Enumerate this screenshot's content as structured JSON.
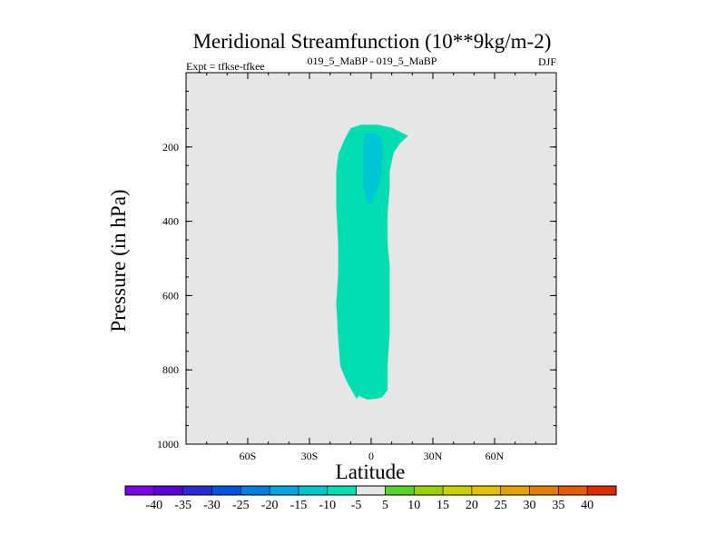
{
  "chart_data": {
    "type": "heatmap",
    "title": "Meridional Streamfunction (10**9kg/m-2)",
    "subtitle_left": "Expt = tfkse-tfkee",
    "subtitle_center": "019_5_MaBP - 019_5_MaBP",
    "subtitle_right": "DJF",
    "xlabel": "Latitude",
    "ylabel": "Pressure (in hPa)",
    "xlim": [
      -90,
      90
    ],
    "ylim": [
      1000,
      0
    ],
    "x_ticks": [
      {
        "value": -60,
        "label": "60S"
      },
      {
        "value": -30,
        "label": "30S"
      },
      {
        "value": 0,
        "label": "0"
      },
      {
        "value": 30,
        "label": "30N"
      },
      {
        "value": 60,
        "label": "60N"
      }
    ],
    "y_ticks": [
      {
        "value": 200,
        "label": "200"
      },
      {
        "value": 400,
        "label": "400"
      },
      {
        "value": 600,
        "label": "600"
      },
      {
        "value": 800,
        "label": "800"
      },
      {
        "value": 1000,
        "label": "1000"
      }
    ],
    "background_color": "#e6e6e6",
    "regions": [
      {
        "name": "cell-minus10-to-minus5",
        "range": [
          -10,
          -5
        ],
        "color": "#00deb0",
        "outline": [
          [
            -10,
            150
          ],
          [
            -5,
            140
          ],
          [
            3,
            140
          ],
          [
            10,
            148
          ],
          [
            18,
            170
          ],
          [
            14,
            190
          ],
          [
            11,
            215
          ],
          [
            9,
            265
          ],
          [
            9,
            310
          ],
          [
            8,
            380
          ],
          [
            8,
            460
          ],
          [
            9,
            520
          ],
          [
            9,
            600
          ],
          [
            9,
            700
          ],
          [
            8,
            790
          ],
          [
            8,
            855
          ],
          [
            5,
            875
          ],
          [
            2,
            878
          ],
          [
            -2,
            880
          ],
          [
            -6,
            870
          ],
          [
            -7,
            878
          ],
          [
            -9,
            860
          ],
          [
            -12,
            830
          ],
          [
            -15,
            790
          ],
          [
            -16,
            720
          ],
          [
            -17,
            620
          ],
          [
            -16,
            540
          ],
          [
            -16,
            460
          ],
          [
            -17,
            360
          ],
          [
            -17,
            270
          ],
          [
            -16,
            220
          ],
          [
            -13,
            180
          ]
        ]
      },
      {
        "name": "cell-minus15-to-minus10",
        "range": [
          -15,
          -10
        ],
        "color": "#00c5d5",
        "outline": [
          [
            -3,
            165
          ],
          [
            1,
            160
          ],
          [
            5,
            175
          ],
          [
            6,
            215
          ],
          [
            5,
            265
          ],
          [
            4,
            300
          ],
          [
            2,
            330
          ],
          [
            0,
            355
          ],
          [
            -2,
            345
          ],
          [
            -4,
            300
          ],
          [
            -4,
            245
          ],
          [
            -4,
            200
          ]
        ]
      }
    ],
    "colorbar": {
      "labels": [
        "-40",
        "-35",
        "-30",
        "-25",
        "-20",
        "-15",
        "-10",
        "-5",
        "5",
        "10",
        "15",
        "20",
        "25",
        "30",
        "35",
        "40"
      ],
      "colors": [
        "#7d00e6",
        "#5a00d8",
        "#2a2ad8",
        "#0055e0",
        "#0080e0",
        "#00a6e6",
        "#00c5d5",
        "#00deb0",
        "#e6e6e6",
        "#55d52a",
        "#9ad200",
        "#c8d200",
        "#e6c000",
        "#e6a000",
        "#e67d00",
        "#e65a00",
        "#e02a00"
      ]
    }
  }
}
